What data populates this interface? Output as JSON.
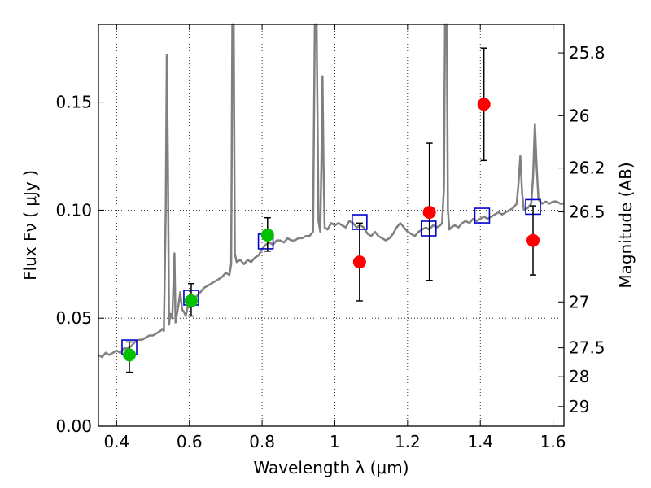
{
  "chart_data": {
    "type": "scatter",
    "title": "",
    "xlabel": "Wavelength  λ (μm)",
    "ylabel": "Flux  Fν  ( μJy )",
    "y2label": "Magnitude (AB)",
    "xlim": [
      0.35,
      1.63
    ],
    "ylim": [
      0.0,
      0.186
    ],
    "grid": true,
    "x_ticks": [
      0.4,
      0.6,
      0.8,
      1.0,
      1.2,
      1.4,
      1.6
    ],
    "x_tick_labels": [
      "0.4",
      "0.6",
      "0.8",
      "1",
      "1.2",
      "1.4",
      "1.6"
    ],
    "y_ticks": [
      0.0,
      0.05,
      0.1,
      0.15
    ],
    "y_tick_labels": [
      "0.00",
      "0.05",
      "0.10",
      "0.15"
    ],
    "y2_ticks": [
      {
        "flux": 0.1728,
        "label": "25.8"
      },
      {
        "flux": 0.1437,
        "label": "26"
      },
      {
        "flux": 0.1195,
        "label": "26.2"
      },
      {
        "flux": 0.0992,
        "label": "26.5"
      },
      {
        "flux": 0.0575,
        "label": "27"
      },
      {
        "flux": 0.0363,
        "label": "27.5"
      },
      {
        "flux": 0.0229,
        "label": "28"
      },
      {
        "flux": 0.0091,
        "label": "29"
      }
    ],
    "series": [
      {
        "kind": "line",
        "color": "#808080",
        "points": [
          [
            0.35,
            0.033
          ],
          [
            0.36,
            0.032
          ],
          [
            0.37,
            0.034
          ],
          [
            0.38,
            0.033
          ],
          [
            0.39,
            0.034
          ],
          [
            0.4,
            0.035
          ],
          [
            0.41,
            0.034
          ],
          [
            0.42,
            0.036
          ],
          [
            0.43,
            0.036
          ],
          [
            0.44,
            0.037
          ],
          [
            0.45,
            0.039
          ],
          [
            0.46,
            0.04
          ],
          [
            0.47,
            0.04
          ],
          [
            0.48,
            0.041
          ],
          [
            0.49,
            0.042
          ],
          [
            0.5,
            0.042
          ],
          [
            0.51,
            0.043
          ],
          [
            0.52,
            0.044
          ],
          [
            0.525,
            0.045
          ],
          [
            0.53,
            0.044
          ],
          [
            0.535,
            0.1
          ],
          [
            0.538,
            0.172
          ],
          [
            0.541,
            0.12
          ],
          [
            0.544,
            0.047
          ],
          [
            0.548,
            0.052
          ],
          [
            0.553,
            0.05
          ],
          [
            0.557,
            0.07
          ],
          [
            0.559,
            0.08
          ],
          [
            0.562,
            0.048
          ],
          [
            0.57,
            0.056
          ],
          [
            0.575,
            0.062
          ],
          [
            0.58,
            0.054
          ],
          [
            0.585,
            0.053
          ],
          [
            0.59,
            0.051
          ],
          [
            0.6,
            0.059
          ],
          [
            0.61,
            0.06
          ],
          [
            0.62,
            0.06
          ],
          [
            0.63,
            0.062
          ],
          [
            0.64,
            0.064
          ],
          [
            0.65,
            0.065
          ],
          [
            0.66,
            0.066
          ],
          [
            0.67,
            0.067
          ],
          [
            0.68,
            0.068
          ],
          [
            0.69,
            0.069
          ],
          [
            0.7,
            0.071
          ],
          [
            0.71,
            0.07
          ],
          [
            0.715,
            0.075
          ],
          [
            0.718,
            0.186
          ],
          [
            0.722,
            0.186
          ],
          [
            0.725,
            0.08
          ],
          [
            0.73,
            0.076
          ],
          [
            0.74,
            0.077
          ],
          [
            0.75,
            0.075
          ],
          [
            0.76,
            0.077
          ],
          [
            0.77,
            0.076
          ],
          [
            0.78,
            0.078
          ],
          [
            0.79,
            0.079
          ],
          [
            0.8,
            0.082
          ],
          [
            0.81,
            0.084
          ],
          [
            0.82,
            0.085
          ],
          [
            0.83,
            0.084
          ],
          [
            0.84,
            0.086
          ],
          [
            0.85,
            0.086
          ],
          [
            0.86,
            0.085
          ],
          [
            0.87,
            0.087
          ],
          [
            0.88,
            0.086
          ],
          [
            0.89,
            0.086
          ],
          [
            0.9,
            0.087
          ],
          [
            0.91,
            0.087
          ],
          [
            0.92,
            0.088
          ],
          [
            0.93,
            0.088
          ],
          [
            0.94,
            0.09
          ],
          [
            0.945,
            0.186
          ],
          [
            0.95,
            0.186
          ],
          [
            0.955,
            0.095
          ],
          [
            0.96,
            0.09
          ],
          [
            0.963,
            0.12
          ],
          [
            0.966,
            0.162
          ],
          [
            0.969,
            0.12
          ],
          [
            0.972,
            0.092
          ],
          [
            0.98,
            0.091
          ],
          [
            0.99,
            0.094
          ],
          [
            1.0,
            0.093
          ],
          [
            1.01,
            0.094
          ],
          [
            1.02,
            0.093
          ],
          [
            1.03,
            0.092
          ],
          [
            1.04,
            0.095
          ],
          [
            1.05,
            0.094
          ],
          [
            1.06,
            0.092
          ],
          [
            1.07,
            0.093
          ],
          [
            1.08,
            0.092
          ],
          [
            1.09,
            0.089
          ],
          [
            1.1,
            0.088
          ],
          [
            1.11,
            0.09
          ],
          [
            1.12,
            0.088
          ],
          [
            1.13,
            0.087
          ],
          [
            1.14,
            0.086
          ],
          [
            1.15,
            0.087
          ],
          [
            1.16,
            0.089
          ],
          [
            1.17,
            0.092
          ],
          [
            1.18,
            0.094
          ],
          [
            1.19,
            0.092
          ],
          [
            1.2,
            0.09
          ],
          [
            1.21,
            0.089
          ],
          [
            1.22,
            0.088
          ],
          [
            1.23,
            0.09
          ],
          [
            1.24,
            0.091
          ],
          [
            1.25,
            0.092
          ],
          [
            1.26,
            0.091
          ],
          [
            1.27,
            0.093
          ],
          [
            1.28,
            0.092
          ],
          [
            1.29,
            0.093
          ],
          [
            1.295,
            0.094
          ],
          [
            1.3,
            0.11
          ],
          [
            1.303,
            0.186
          ],
          [
            1.308,
            0.186
          ],
          [
            1.311,
            0.1
          ],
          [
            1.315,
            0.091
          ],
          [
            1.32,
            0.092
          ],
          [
            1.33,
            0.093
          ],
          [
            1.34,
            0.092
          ],
          [
            1.35,
            0.094
          ],
          [
            1.36,
            0.095
          ],
          [
            1.37,
            0.094
          ],
          [
            1.38,
            0.096
          ],
          [
            1.39,
            0.095
          ],
          [
            1.4,
            0.096
          ],
          [
            1.41,
            0.097
          ],
          [
            1.42,
            0.096
          ],
          [
            1.43,
            0.097
          ],
          [
            1.44,
            0.098
          ],
          [
            1.45,
            0.099
          ],
          [
            1.46,
            0.098
          ],
          [
            1.47,
            0.099
          ],
          [
            1.48,
            0.1
          ],
          [
            1.49,
            0.101
          ],
          [
            1.5,
            0.103
          ],
          [
            1.505,
            0.112
          ],
          [
            1.51,
            0.125
          ],
          [
            1.515,
            0.108
          ],
          [
            1.52,
            0.1
          ],
          [
            1.53,
            0.101
          ],
          [
            1.54,
            0.103
          ],
          [
            1.545,
            0.115
          ],
          [
            1.55,
            0.14
          ],
          [
            1.555,
            0.12
          ],
          [
            1.56,
            0.105
          ],
          [
            1.57,
            0.103
          ],
          [
            1.58,
            0.104
          ],
          [
            1.59,
            0.103
          ],
          [
            1.6,
            0.104
          ],
          [
            1.61,
            0.104
          ],
          [
            1.62,
            0.103
          ],
          [
            1.63,
            0.103
          ]
        ]
      },
      {
        "kind": "square",
        "color": "#0000cc",
        "points": [
          [
            0.435,
            0.0365
          ],
          [
            0.605,
            0.0595
          ],
          [
            0.81,
            0.0855
          ],
          [
            1.068,
            0.0945
          ],
          [
            1.258,
            0.0915
          ],
          [
            1.405,
            0.0975
          ],
          [
            1.545,
            0.1015
          ]
        ]
      },
      {
        "kind": "errorbar",
        "color": "#00c000",
        "points": [
          [
            0.435,
            0.033,
            0.025,
            0.039
          ],
          [
            0.605,
            0.058,
            0.051,
            0.066
          ],
          [
            0.815,
            0.0885,
            0.081,
            0.0965
          ]
        ]
      },
      {
        "kind": "errorbar",
        "color": "#ff0000",
        "points": [
          [
            1.068,
            0.076,
            0.058,
            0.094
          ],
          [
            1.26,
            0.099,
            0.0675,
            0.131
          ],
          [
            1.41,
            0.149,
            0.123,
            0.175
          ],
          [
            1.545,
            0.086,
            0.07,
            0.102
          ]
        ]
      }
    ]
  }
}
